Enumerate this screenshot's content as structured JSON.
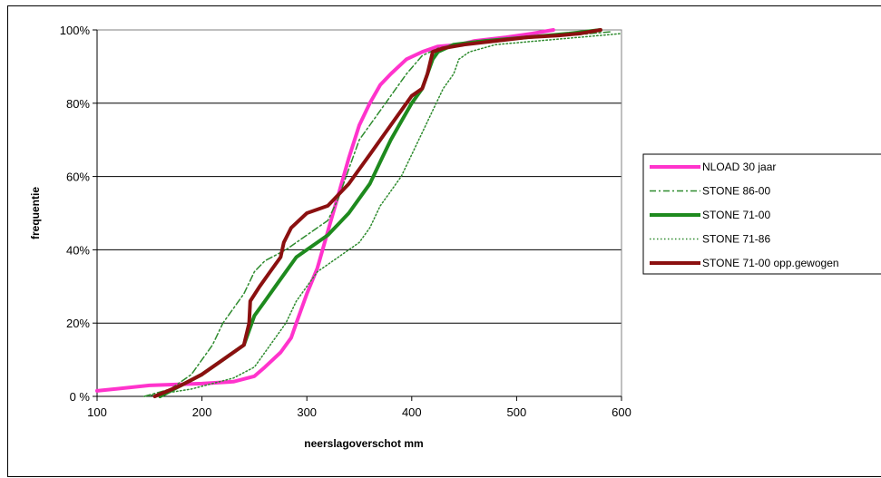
{
  "chart_data": {
    "type": "line",
    "xlabel": "neerslagoverschot mm",
    "ylabel": "frequentie",
    "xlim": [
      100,
      600
    ],
    "ylim": [
      0,
      100
    ],
    "x_ticks": [
      "100",
      "200",
      "300",
      "400",
      "500",
      "600"
    ],
    "y_ticks": [
      "0 %",
      "20%",
      "40%",
      "60%",
      "80%",
      "100%"
    ],
    "grid": "horizontal",
    "legend_position": "right",
    "series": [
      {
        "name": "NLOAD 30 jaar",
        "color": "#ff33cc",
        "style": "solid",
        "width": 4,
        "points": [
          [
            100,
            1.5
          ],
          [
            150,
            3
          ],
          [
            200,
            3.5
          ],
          [
            230,
            4
          ],
          [
            250,
            5.5
          ],
          [
            260,
            8
          ],
          [
            275,
            12
          ],
          [
            285,
            16
          ],
          [
            290,
            20
          ],
          [
            300,
            28
          ],
          [
            310,
            35
          ],
          [
            320,
            45
          ],
          [
            330,
            55
          ],
          [
            340,
            65
          ],
          [
            350,
            74
          ],
          [
            360,
            80
          ],
          [
            370,
            85
          ],
          [
            380,
            88
          ],
          [
            395,
            92
          ],
          [
            410,
            94
          ],
          [
            425,
            95.5
          ],
          [
            445,
            96
          ],
          [
            460,
            97
          ],
          [
            490,
            98
          ],
          [
            515,
            99
          ],
          [
            535,
            100
          ]
        ]
      },
      {
        "name": "STONE 86-00",
        "color": "#2e8b2e",
        "style": "dashdot",
        "width": 1.5,
        "points": [
          [
            145,
            0
          ],
          [
            170,
            2
          ],
          [
            190,
            6
          ],
          [
            200,
            10
          ],
          [
            210,
            14
          ],
          [
            220,
            20
          ],
          [
            230,
            24
          ],
          [
            240,
            28
          ],
          [
            250,
            34
          ],
          [
            260,
            37
          ],
          [
            280,
            40
          ],
          [
            300,
            44
          ],
          [
            320,
            48
          ],
          [
            330,
            54
          ],
          [
            340,
            62
          ],
          [
            350,
            70
          ],
          [
            360,
            74
          ],
          [
            370,
            78
          ],
          [
            380,
            82
          ],
          [
            395,
            88
          ],
          [
            410,
            93
          ],
          [
            425,
            95
          ],
          [
            440,
            96
          ],
          [
            460,
            97
          ],
          [
            500,
            98
          ],
          [
            550,
            98.5
          ],
          [
            590,
            99.5
          ]
        ]
      },
      {
        "name": "STONE 71-00",
        "color": "#1e8a1e",
        "style": "solid",
        "width": 4,
        "points": [
          [
            160,
            0
          ],
          [
            180,
            3
          ],
          [
            200,
            6
          ],
          [
            220,
            10
          ],
          [
            240,
            14
          ],
          [
            245,
            18
          ],
          [
            250,
            22
          ],
          [
            260,
            26
          ],
          [
            270,
            30
          ],
          [
            280,
            34
          ],
          [
            290,
            38
          ],
          [
            300,
            40
          ],
          [
            320,
            44
          ],
          [
            330,
            47
          ],
          [
            340,
            50
          ],
          [
            350,
            54
          ],
          [
            360,
            58
          ],
          [
            370,
            64
          ],
          [
            380,
            70
          ],
          [
            390,
            75
          ],
          [
            400,
            80
          ],
          [
            410,
            84
          ],
          [
            415,
            88
          ],
          [
            420,
            92
          ],
          [
            425,
            94
          ],
          [
            440,
            96
          ],
          [
            470,
            97
          ],
          [
            510,
            98
          ],
          [
            550,
            99
          ],
          [
            580,
            100
          ]
        ]
      },
      {
        "name": "STONE 71-86",
        "color": "#2e8b2e",
        "style": "dotted",
        "width": 1.5,
        "points": [
          [
            145,
            0
          ],
          [
            190,
            2
          ],
          [
            230,
            5
          ],
          [
            250,
            8
          ],
          [
            260,
            12
          ],
          [
            270,
            16
          ],
          [
            280,
            20
          ],
          [
            290,
            26
          ],
          [
            300,
            30
          ],
          [
            310,
            34
          ],
          [
            330,
            38
          ],
          [
            350,
            42
          ],
          [
            360,
            46
          ],
          [
            370,
            52
          ],
          [
            380,
            56
          ],
          [
            390,
            60
          ],
          [
            400,
            66
          ],
          [
            410,
            72
          ],
          [
            420,
            78
          ],
          [
            430,
            84
          ],
          [
            440,
            88
          ],
          [
            445,
            92
          ],
          [
            455,
            94
          ],
          [
            480,
            96
          ],
          [
            520,
            97
          ],
          [
            560,
            98
          ],
          [
            600,
            99
          ]
        ]
      },
      {
        "name": "STONE 71-00 opp.gewogen",
        "color": "#8b1010",
        "style": "solid",
        "width": 4,
        "points": [
          [
            155,
            0
          ],
          [
            180,
            3
          ],
          [
            200,
            6
          ],
          [
            220,
            10
          ],
          [
            240,
            14
          ],
          [
            245,
            20
          ],
          [
            246,
            26
          ],
          [
            255,
            30
          ],
          [
            265,
            34
          ],
          [
            275,
            38
          ],
          [
            278,
            42
          ],
          [
            285,
            46
          ],
          [
            300,
            50
          ],
          [
            320,
            52
          ],
          [
            330,
            55
          ],
          [
            340,
            58
          ],
          [
            350,
            62
          ],
          [
            360,
            66
          ],
          [
            375,
            72
          ],
          [
            390,
            78
          ],
          [
            400,
            82
          ],
          [
            410,
            84
          ],
          [
            415,
            88
          ],
          [
            420,
            94
          ],
          [
            430,
            95
          ],
          [
            450,
            96
          ],
          [
            480,
            97
          ],
          [
            510,
            98
          ],
          [
            540,
            98.5
          ],
          [
            560,
            99
          ],
          [
            580,
            100
          ]
        ]
      }
    ]
  }
}
